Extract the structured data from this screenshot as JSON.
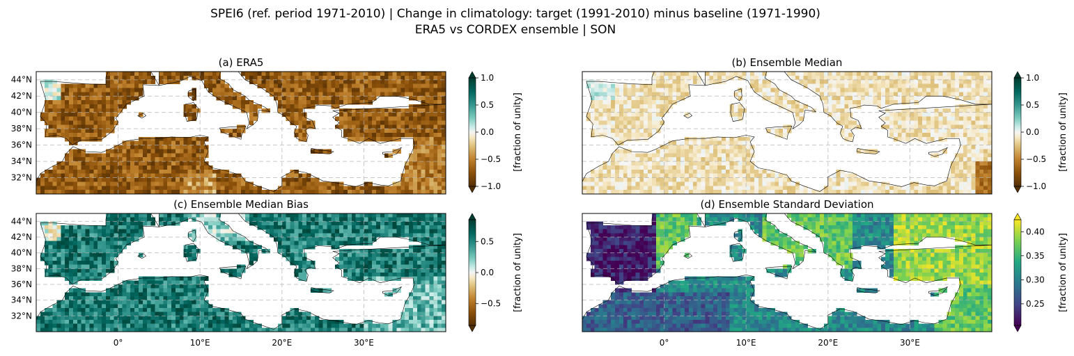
{
  "figure": {
    "title_line1": "SPEI6 (ref. period 1971-2010) | Change in climatology: target (1991-2010) minus baseline (1971-1990)",
    "title_line2": "ERA5 vs CORDEX ensemble | SON"
  },
  "chart_data": [
    {
      "type": "heatmap",
      "title": "(a) ERA5",
      "colormap": "BrBG",
      "colorbar": {
        "label": "[fraction of unity]",
        "range": [
          -1.0,
          1.0
        ],
        "ticks": [
          "1.0",
          "0.5",
          "0.0",
          "−0.5",
          "−1.0"
        ]
      },
      "lat_ticks": [
        "44°N",
        "42°N",
        "40°N",
        "38°N",
        "36°N",
        "34°N",
        "32°N"
      ],
      "lon_ticks": [],
      "grid": true,
      "pattern": "strong drying (brown) over Iberia, North Africa, Italy, Balkans and Anatolia"
    },
    {
      "type": "heatmap",
      "title": "(b) Ensemble Median",
      "colormap": "BrBG",
      "colorbar": {
        "label": "[fraction of unity]",
        "range": [
          -1.0,
          1.0
        ],
        "ticks": [
          "1.0",
          "0.5",
          "0.0",
          "−0.5",
          "−1.0"
        ]
      },
      "lat_ticks": [],
      "lon_ticks": [],
      "grid": true,
      "pattern": "weak signal, light tan values near 0 to -0.3"
    },
    {
      "type": "heatmap",
      "title": "(c) Ensemble Median Bias",
      "colormap": "BrBG",
      "colorbar": {
        "label": "[fraction of unity]",
        "range": [
          -0.85,
          0.85
        ],
        "ticks": [
          "0.5",
          "0.0",
          "−0.5"
        ]
      },
      "lat_ticks": [
        "44°N",
        "42°N",
        "40°N",
        "38°N",
        "36°N",
        "34°N",
        "32°N"
      ],
      "lon_ticks": [
        "0°",
        "10°E",
        "20°E",
        "30°E"
      ],
      "grid": true,
      "pattern": "positive bias (teal) over Iberia, North Africa, Balkans and Anatolia"
    },
    {
      "type": "heatmap",
      "title": "(d) Ensemble Standard Deviation",
      "colormap": "viridis",
      "colorbar": {
        "label": "[fraction of unity]",
        "range": [
          0.205,
          0.425
        ],
        "ticks": [
          "0.40",
          "0.35",
          "0.30",
          "0.25"
        ]
      },
      "lat_ticks": [],
      "lon_ticks": [
        "0°",
        "10°E",
        "20°E",
        "30°E"
      ],
      "grid": true,
      "pattern": "low spread over western Iberia and Sahara, high spread over eastern Iberia, Balkans and Anatolia"
    }
  ]
}
